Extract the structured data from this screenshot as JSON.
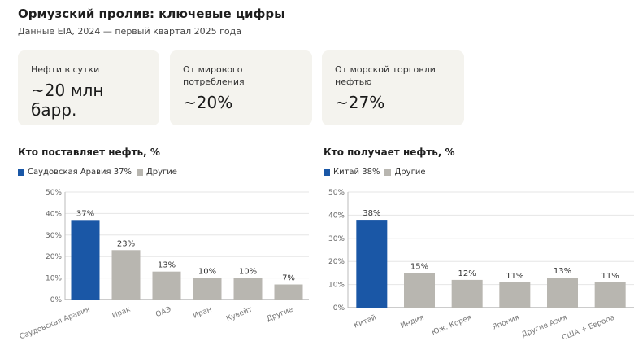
{
  "header": {
    "title": "Ормузский пролив: ключевые цифры",
    "subtitle": "Данные EIA, 2024 — первый квартал 2025 года"
  },
  "stats": [
    {
      "label": "Нефти в сутки",
      "value": "~20 млн барр."
    },
    {
      "label": "От мирового потребления",
      "value": "~20%"
    },
    {
      "label": "От морской торговли нефтью",
      "value": "~27%"
    }
  ],
  "colors": {
    "highlight": "#1a57a6",
    "other": "#b8b6b0",
    "card": "#f4f3ee"
  },
  "legend_other": "Другие",
  "chart_data": [
    {
      "type": "bar",
      "title": "Кто поставляет нефть, %",
      "legend": [
        {
          "name": "Саудовская Аравия",
          "value": "37%"
        }
      ],
      "categories": [
        "Саудовская Аравия",
        "Ирак",
        "ОАЭ",
        "Иран",
        "Кувейт",
        "Другие"
      ],
      "values": [
        37,
        23,
        13,
        10,
        10,
        7
      ],
      "data_labels": [
        "37%",
        "23%",
        "13%",
        "10%",
        "10%",
        "7%"
      ],
      "highlight_index": 0,
      "yticks": [
        "0%",
        "10%",
        "20%",
        "30%",
        "40%",
        "50%"
      ],
      "ylim": [
        0,
        50
      ],
      "grid": true
    },
    {
      "type": "bar",
      "title": "Кто получает нефть, %",
      "legend": [
        {
          "name": "Китай",
          "value": "38%"
        }
      ],
      "categories": [
        "Китай",
        "Индия",
        "Юж. Корея",
        "Япония",
        "Другие Азия",
        "США + Европа"
      ],
      "values": [
        38,
        15,
        12,
        11,
        13,
        11
      ],
      "data_labels": [
        "38%",
        "15%",
        "12%",
        "11%",
        "13%",
        "11%"
      ],
      "highlight_index": 0,
      "yticks": [
        "0%",
        "10%",
        "20%",
        "30%",
        "40%",
        "50%"
      ],
      "ylim": [
        0,
        50
      ],
      "grid": true
    }
  ]
}
